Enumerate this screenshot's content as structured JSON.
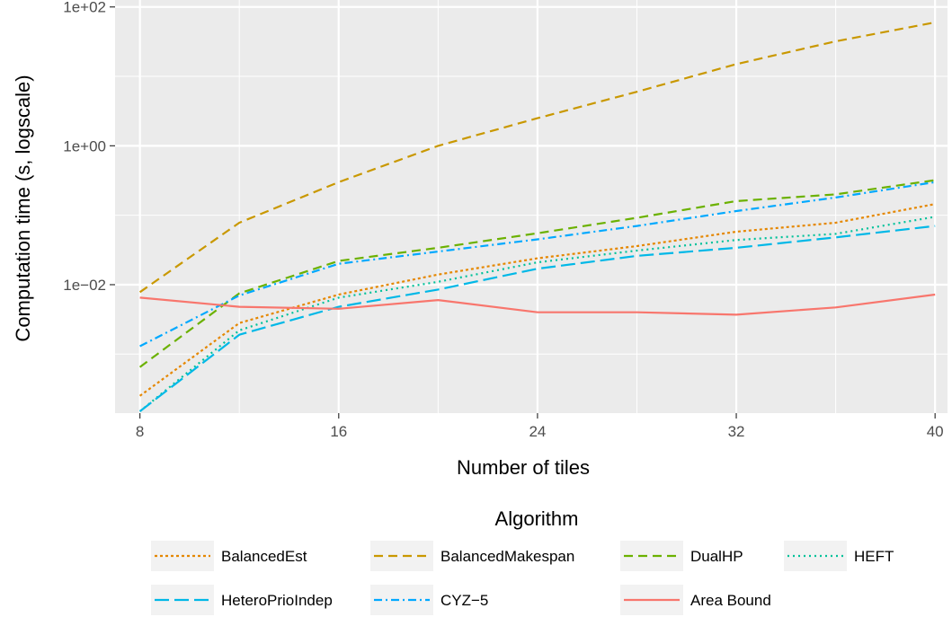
{
  "chart_data": {
    "type": "line",
    "xlabel": "Number of tiles",
    "ylabel": "Computation time (s, logscale)",
    "y_scale": "log10",
    "xlim": [
      7.0,
      40.5
    ],
    "ylim_log10": [
      -3.85,
      2.1
    ],
    "x_ticks": [
      8,
      16,
      24,
      32,
      40
    ],
    "x_tick_labels": [
      "8",
      "16",
      "24",
      "32",
      "40"
    ],
    "y_ticks": [
      0.01,
      1,
      100
    ],
    "y_tick_labels": [
      "1e−02",
      "1e+00",
      "1e+02"
    ],
    "grid": true,
    "background": "#ebebeb",
    "legend": {
      "title": "Algorithm",
      "position": "bottom",
      "columns": 4
    },
    "series": [
      {
        "name": "BalancedEst",
        "color": "#e58700",
        "dash": "dotted-short",
        "x": [
          8,
          12,
          16,
          20,
          24,
          28,
          32,
          36,
          40
        ],
        "y": [
          0.00025,
          0.0028,
          0.0072,
          0.014,
          0.024,
          0.036,
          0.058,
          0.078,
          0.145
        ]
      },
      {
        "name": "BalancedMakespan",
        "color": "#c99800",
        "dash": "dashed",
        "x": [
          8,
          12,
          16,
          20,
          24,
          28,
          32,
          36,
          40
        ],
        "y": [
          0.0078,
          0.078,
          0.3,
          1.0,
          2.5,
          6.0,
          15.0,
          32.0,
          60.0
        ]
      },
      {
        "name": "DualHP",
        "color": "#6bb100",
        "dash": "dashed",
        "x": [
          8,
          12,
          16,
          20,
          24,
          28,
          32,
          36,
          40
        ],
        "y": [
          0.00065,
          0.0075,
          0.022,
          0.034,
          0.055,
          0.092,
          0.16,
          0.2,
          0.32
        ]
      },
      {
        "name": "HEFT",
        "color": "#00c19a",
        "dash": "dotted",
        "x": [
          8,
          12,
          16,
          20,
          24,
          28,
          32,
          36,
          40
        ],
        "y": [
          0.00015,
          0.0022,
          0.0065,
          0.011,
          0.021,
          0.031,
          0.044,
          0.054,
          0.095
        ]
      },
      {
        "name": "HeteroPrioIndep",
        "color": "#00b8e7",
        "dash": "long-dash",
        "x": [
          8,
          12,
          16,
          20,
          24,
          28,
          32,
          36,
          40
        ],
        "y": [
          0.00015,
          0.0019,
          0.0048,
          0.0085,
          0.017,
          0.026,
          0.034,
          0.048,
          0.07
        ]
      },
      {
        "name": "CYZ−5",
        "color": "#00a9ff",
        "dash": "dash-dot",
        "x": [
          8,
          12,
          16,
          20,
          24,
          28,
          32,
          36,
          40
        ],
        "y": [
          0.0013,
          0.007,
          0.02,
          0.03,
          0.045,
          0.07,
          0.115,
          0.18,
          0.3
        ]
      },
      {
        "name": "Area Bound",
        "color": "#f8766d",
        "dash": "solid",
        "x": [
          8,
          12,
          16,
          20,
          24,
          28,
          32,
          36,
          40
        ],
        "y": [
          0.0065,
          0.0048,
          0.0045,
          0.006,
          0.004,
          0.004,
          0.0037,
          0.0047,
          0.0072
        ]
      }
    ]
  }
}
